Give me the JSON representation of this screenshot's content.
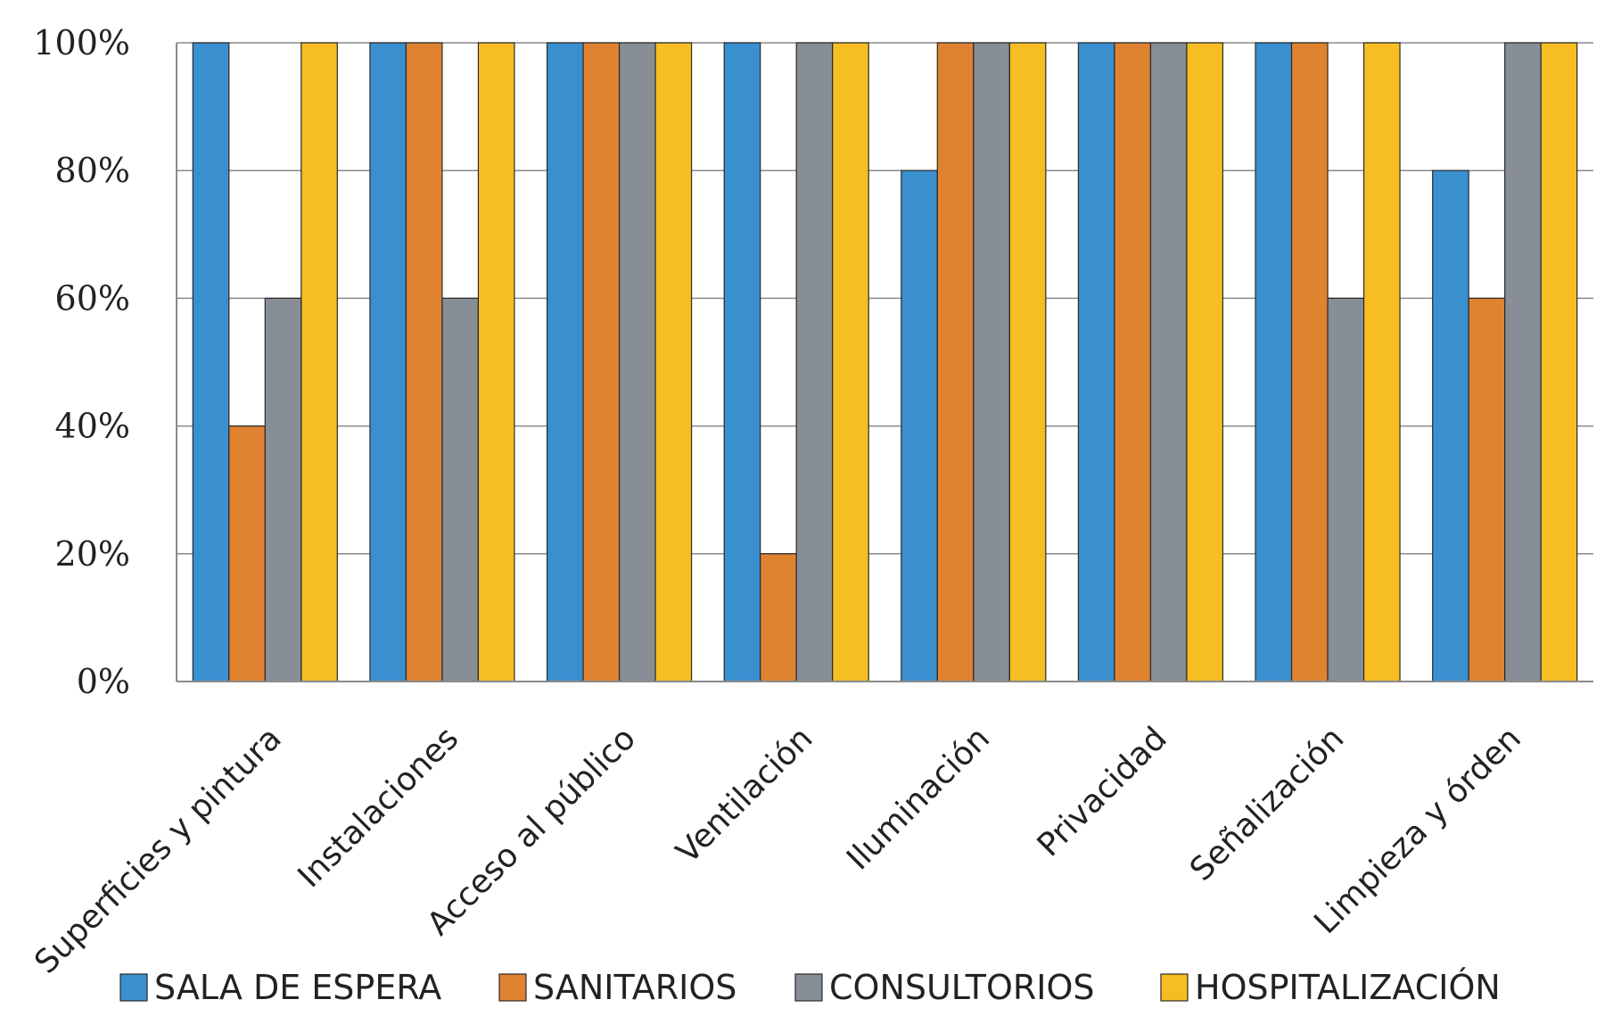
{
  "chart_data": {
    "type": "bar",
    "title": "",
    "xlabel": "",
    "ylabel": "",
    "ylim": [
      0,
      100
    ],
    "y_ticks": [
      "0%",
      "20%",
      "40%",
      "60%",
      "80%",
      "100%"
    ],
    "grid": true,
    "legend_position": "bottom",
    "categories": [
      "Superficies y pintura",
      "Instalaciones",
      "Acceso al público",
      "Ventilación",
      "Iluminación",
      "Privacidad",
      "Señalización",
      "Limpieza y órden"
    ],
    "series": [
      {
        "name": "SALA DE ESPERA",
        "color": "#3a8fcf",
        "values": [
          100,
          100,
          100,
          100,
          80,
          100,
          100,
          80
        ]
      },
      {
        "name": "SANITARIOS",
        "color": "#e08331",
        "values": [
          40,
          100,
          100,
          20,
          100,
          100,
          100,
          60
        ]
      },
      {
        "name": "CONSULTORIOS",
        "color": "#888e96",
        "values": [
          60,
          60,
          100,
          100,
          100,
          100,
          60,
          100
        ]
      },
      {
        "name": "HOSPITALIZACIÓN",
        "color": "#f6be23",
        "values": [
          100,
          100,
          100,
          100,
          100,
          100,
          100,
          100
        ]
      }
    ]
  }
}
